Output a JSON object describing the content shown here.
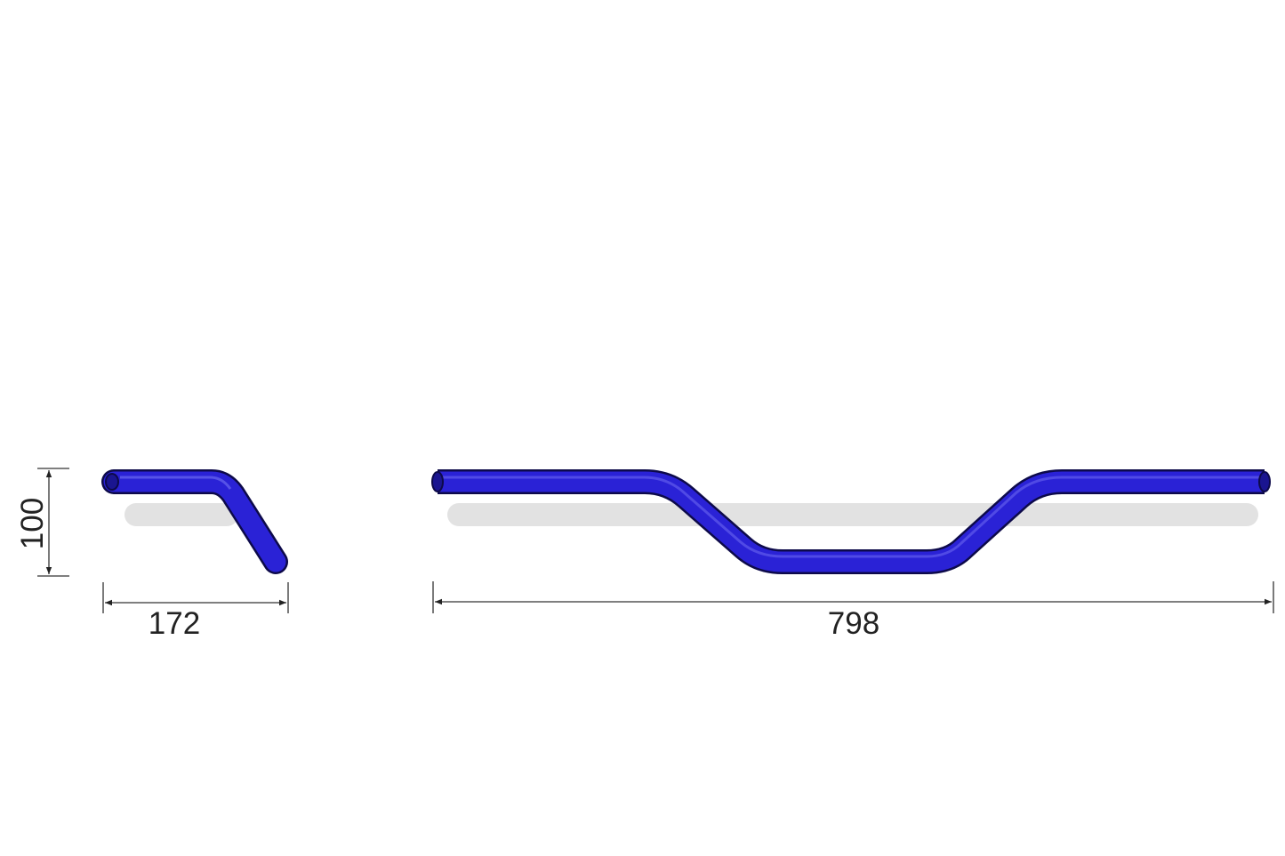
{
  "dimensions": {
    "height": "100",
    "depth": "172",
    "width": "798"
  },
  "colors": {
    "tube": "#2a22d6",
    "tube_outline": "#0d0a4a",
    "tube_highlight": "#6a66ee",
    "shadow": "#e2e2e2",
    "dimension_line": "#333333"
  }
}
